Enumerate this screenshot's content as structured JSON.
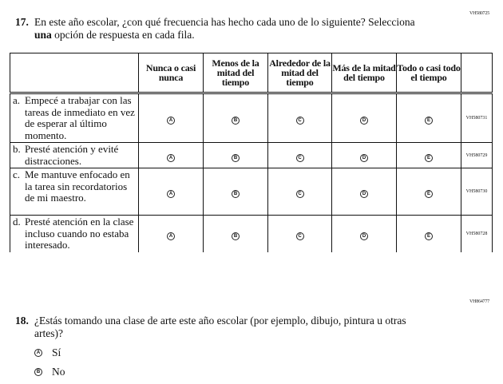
{
  "q17": {
    "code": "VH580725",
    "number": "17.",
    "text_line1": "En este año escolar, ¿con qué frecuencia has hecho cada uno de lo siguiente? Selecciona",
    "text_bold": "una",
    "text_line2_rest": " opción de respuesta en cada fila.",
    "columns": [
      "Nunca o casi nunca",
      "Menos de la mitad del tiempo",
      "Alrededor de la mitad del tiempo",
      "Más de la mitad del tiempo",
      "Todo o casi todo el tiempo"
    ],
    "bubble_letters": [
      "A",
      "B",
      "C",
      "D",
      "E"
    ],
    "rows": [
      {
        "label": "a.",
        "text": "Empecé a trabajar con las tareas de inmediato en vez de esperar al último momento.",
        "code": "VH580731"
      },
      {
        "label": "b.",
        "text": "Presté atención y evité distracciones.",
        "code": "VH580729"
      },
      {
        "label": "c.",
        "text": "Me mantuve enfocado en la tarea sin recordatorios de mi maestro.",
        "code": "VH580730"
      },
      {
        "label": "d.",
        "text": "Presté atención en la clase incluso cuando no estaba interesado.",
        "code": "VH580728"
      }
    ]
  },
  "q18": {
    "code": "VH864777",
    "number": "18.",
    "text": "¿Estás tomando una clase de arte este año escolar (por ejemplo, dibujo, pintura u otras artes)?",
    "options": [
      {
        "letter": "A",
        "label": "Sí"
      },
      {
        "letter": "B",
        "label": "No"
      }
    ]
  }
}
